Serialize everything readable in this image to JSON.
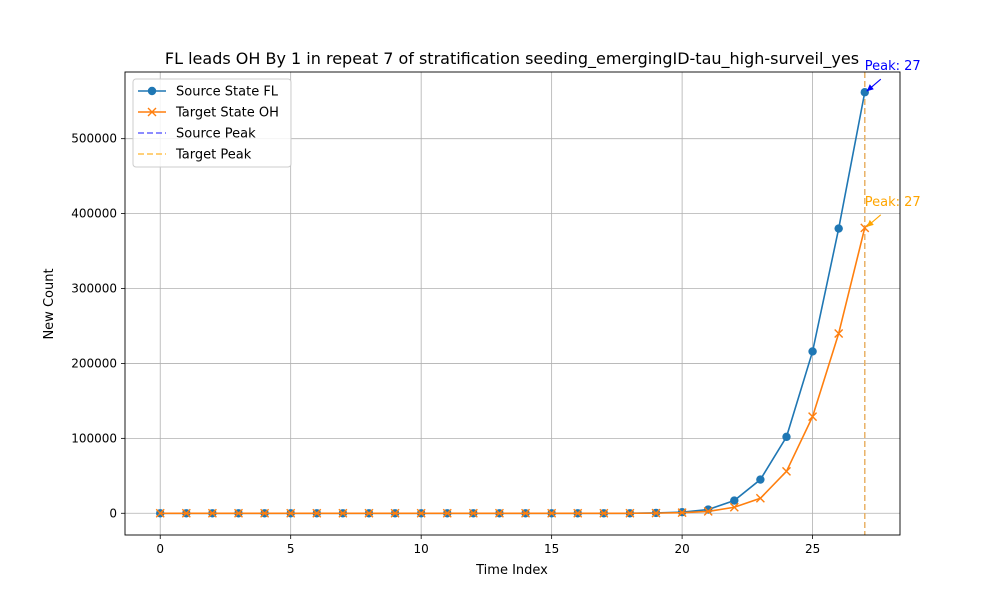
{
  "chart_data": {
    "type": "line",
    "title": "FL leads OH By 1 in repeat 7 of stratification seeding_emergingID-tau_high-surveil_yes",
    "xlabel": "Time Index",
    "ylabel": "New Count",
    "xlim": [
      -1.35,
      28.35
    ],
    "ylim": [
      -29000,
      589000
    ],
    "xticks": [
      0,
      5,
      10,
      15,
      20,
      25
    ],
    "yticks": [
      0,
      100000,
      200000,
      300000,
      400000,
      500000
    ],
    "grid": true,
    "legend_position": "top-left",
    "x": [
      0,
      1,
      2,
      3,
      4,
      5,
      6,
      7,
      8,
      9,
      10,
      11,
      12,
      13,
      14,
      15,
      16,
      17,
      18,
      19,
      20,
      21,
      22,
      23,
      24,
      25,
      26,
      27
    ],
    "series": [
      {
        "name": "Source State FL",
        "color": "#1f77b4",
        "marker": "circle",
        "values": [
          0,
          0,
          0,
          0,
          0,
          0,
          0,
          0,
          0,
          0,
          0,
          0,
          0,
          0,
          0,
          0,
          0,
          0,
          0,
          500,
          1500,
          5000,
          17000,
          45000,
          102000,
          216000,
          380000,
          562000
        ]
      },
      {
        "name": "Target State OH",
        "color": "#ff7f0e",
        "marker": "x",
        "values": [
          0,
          0,
          0,
          0,
          0,
          0,
          0,
          0,
          0,
          0,
          0,
          0,
          0,
          0,
          0,
          0,
          0,
          0,
          0,
          200,
          800,
          2500,
          8000,
          20000,
          56000,
          129000,
          240000,
          381000
        ]
      }
    ],
    "peak_lines": [
      {
        "name": "Source Peak",
        "x": 27,
        "color": "#6666ff"
      },
      {
        "name": "Target Peak",
        "x": 27,
        "color": "#ffc04d"
      }
    ],
    "annotations": [
      {
        "text": "Peak: 27",
        "x": 27,
        "y": 562000,
        "color": "#0000ff"
      },
      {
        "text": "Peak: 27",
        "x": 27,
        "y": 381000,
        "color": "#ffa500"
      }
    ]
  }
}
